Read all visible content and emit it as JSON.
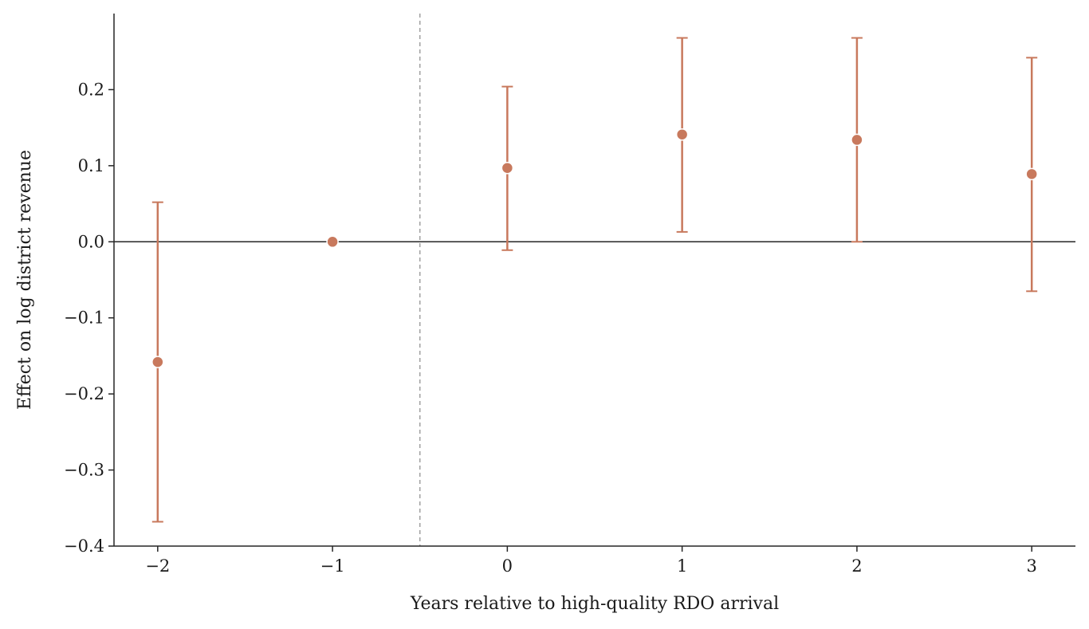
{
  "chart_data": {
    "type": "scatter",
    "subtype": "event-study coefficient plot with error bars",
    "title": "",
    "xlabel": "Years relative to high-quality RDO arrival",
    "ylabel": "Effect on log district revenue",
    "xlim": [
      -2.25,
      3.25
    ],
    "ylim": [
      -0.4,
      0.3
    ],
    "xticks": [
      -2,
      -1,
      0,
      1,
      2,
      3
    ],
    "xtick_labels": [
      "−2",
      "−1",
      "0",
      "1",
      "2",
      "3"
    ],
    "yticks": [
      -0.4,
      -0.3,
      -0.2,
      -0.1,
      0.0,
      0.1,
      0.2
    ],
    "ytick_labels": [
      "−0.4",
      "−0.3",
      "−0.2",
      "−0.1",
      "0.0",
      "0.1",
      "0.2"
    ],
    "grid": false,
    "reference_lines": {
      "horizontal_zero": 0.0,
      "vertical_dashed_x": -0.5
    },
    "series": [
      {
        "color": "#c8795d",
        "points": [
          {
            "x": -2,
            "y": -0.158,
            "ci_low": -0.368,
            "ci_high": 0.052
          },
          {
            "x": -1,
            "y": 0.0,
            "ci_low": null,
            "ci_high": null
          },
          {
            "x": 0,
            "y": 0.097,
            "ci_low": -0.011,
            "ci_high": 0.204
          },
          {
            "x": 1,
            "y": 0.141,
            "ci_low": 0.013,
            "ci_high": 0.268
          },
          {
            "x": 2,
            "y": 0.134,
            "ci_low": 0.0,
            "ci_high": 0.268
          },
          {
            "x": 3,
            "y": 0.089,
            "ci_low": -0.065,
            "ci_high": 0.242
          }
        ]
      }
    ]
  }
}
